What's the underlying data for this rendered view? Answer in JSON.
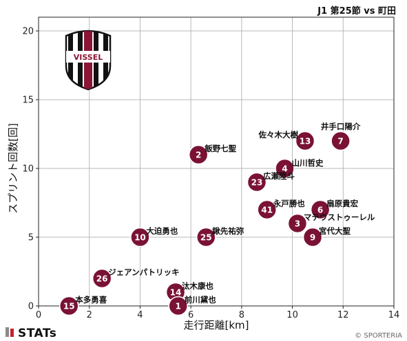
{
  "header": {
    "title": "J1 第25節 vs 町田"
  },
  "footer": {
    "brand": "STATs",
    "credit": "© SPORTERIA"
  },
  "colors": {
    "marker": "#7a1234",
    "grid": "#b8b8b8",
    "brand_bar_red": "#c8202f",
    "brand_bar_gray": "#8a8a8a"
  },
  "logo": {
    "icon": "vissel-crest-icon",
    "text": "VISSEL"
  },
  "chart_data": {
    "type": "scatter",
    "xlabel": "走行距離[km]",
    "ylabel": "スプリント回数[回]",
    "xlim": [
      0,
      14
    ],
    "ylim": [
      0,
      21
    ],
    "xticks": [
      0,
      2,
      4,
      6,
      8,
      10,
      12,
      14
    ],
    "yticks": [
      0,
      5,
      10,
      15,
      20
    ],
    "grid": true,
    "points": [
      {
        "number": "7",
        "name": "井手口陽介",
        "x": 11.9,
        "y": 12,
        "label_pos": "above"
      },
      {
        "number": "13",
        "name": "佐々木大樹",
        "x": 10.5,
        "y": 12,
        "label_pos": "left-above"
      },
      {
        "number": "2",
        "name": "飯野七聖",
        "x": 6.3,
        "y": 11,
        "label_pos": "right-above"
      },
      {
        "number": "4",
        "name": "山川哲史",
        "x": 9.7,
        "y": 10,
        "label_pos": "right"
      },
      {
        "number": "23",
        "name": "広瀬陸斗",
        "x": 8.6,
        "y": 9,
        "label_pos": "right-above"
      },
      {
        "number": "41",
        "name": "永戸勝也",
        "x": 9.0,
        "y": 7,
        "label_pos": "right-above"
      },
      {
        "number": "6",
        "name": "扇原貴宏",
        "x": 11.1,
        "y": 7,
        "label_pos": "right-above"
      },
      {
        "number": "3",
        "name": "マテウストゥーレル",
        "x": 10.2,
        "y": 6,
        "label_pos": "right-above"
      },
      {
        "number": "9",
        "name": "宮代大聖",
        "x": 10.8,
        "y": 5,
        "label_pos": "right-above"
      },
      {
        "number": "10",
        "name": "大迫勇也",
        "x": 4.0,
        "y": 5,
        "label_pos": "right-above"
      },
      {
        "number": "25",
        "name": "鍬先祐弥",
        "x": 6.6,
        "y": 5,
        "label_pos": "right-above"
      },
      {
        "number": "26",
        "name": "ジェアンパトリッキ",
        "x": 2.5,
        "y": 2,
        "label_pos": "right-above"
      },
      {
        "number": "14",
        "name": "汰木康也",
        "x": 5.4,
        "y": 1,
        "label_pos": "right-above"
      },
      {
        "number": "15",
        "name": "本多勇喜",
        "x": 1.2,
        "y": 0,
        "label_pos": "right-above"
      },
      {
        "number": "1",
        "name": "前川黛也",
        "x": 5.5,
        "y": 0,
        "label_pos": "right-above"
      }
    ]
  }
}
